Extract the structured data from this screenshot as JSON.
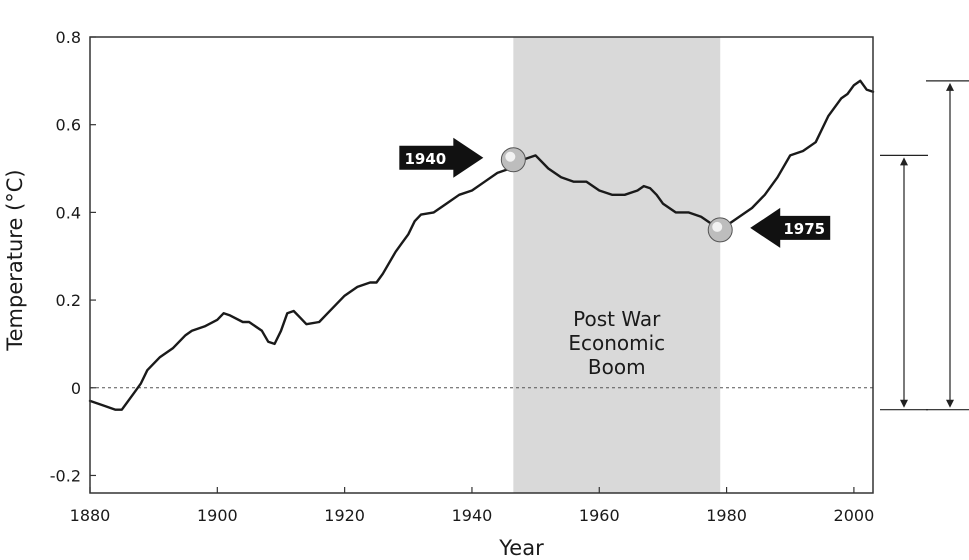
{
  "chart_data": {
    "type": "line",
    "title": "",
    "xlabel": "Year",
    "ylabel": "Temperature (°C)",
    "xlim": [
      1880,
      2003
    ],
    "ylim": [
      -0.24,
      0.8
    ],
    "x_ticks": [
      1880,
      1900,
      1920,
      1940,
      1960,
      1980,
      2000
    ],
    "y_ticks": [
      {
        "value": 0.8,
        "label": "0.8"
      },
      {
        "value": 0.6,
        "label": "0.6"
      },
      {
        "value": 0.4,
        "label": "0.4"
      },
      {
        "value": 0.2,
        "label": "0.2"
      },
      {
        "value": 0,
        "label": "0"
      },
      {
        "value": -0.2,
        "label": "-0.2"
      }
    ],
    "reference_line": {
      "y": 0,
      "style": "dashed"
    },
    "shaded_region": {
      "x_start": 1946.5,
      "x_end": 1979,
      "label_lines": [
        "Post War",
        "Economic",
        "Boom"
      ]
    },
    "series": [
      {
        "name": "Temperature",
        "x": [
          1880,
          1882,
          1884,
          1885,
          1886,
          1887,
          1888,
          1889,
          1891,
          1893,
          1895,
          1896,
          1898,
          1900,
          1901,
          1902,
          1904,
          1905,
          1907,
          1908,
          1909,
          1910,
          1911,
          1912,
          1913,
          1914,
          1916,
          1917,
          1918,
          1920,
          1922,
          1924,
          1925,
          1926,
          1928,
          1929,
          1930,
          1931,
          1932,
          1934,
          1936,
          1938,
          1940,
          1942,
          1944,
          1946,
          1948,
          1950,
          1952,
          1954,
          1956,
          1958,
          1960,
          1962,
          1964,
          1966,
          1967,
          1968,
          1969,
          1970,
          1972,
          1974,
          1976,
          1978,
          1979,
          1980,
          1982,
          1984,
          1986,
          1988,
          1990,
          1992,
          1994,
          1996,
          1998,
          1999,
          2000,
          2001,
          2002,
          2003
        ],
        "y": [
          -0.03,
          -0.04,
          -0.05,
          -0.05,
          -0.03,
          -0.01,
          0.01,
          0.04,
          0.07,
          0.09,
          0.12,
          0.13,
          0.14,
          0.155,
          0.17,
          0.165,
          0.15,
          0.15,
          0.13,
          0.105,
          0.1,
          0.13,
          0.17,
          0.175,
          0.16,
          0.145,
          0.15,
          0.165,
          0.18,
          0.21,
          0.23,
          0.24,
          0.24,
          0.26,
          0.31,
          0.33,
          0.35,
          0.38,
          0.395,
          0.4,
          0.42,
          0.44,
          0.45,
          0.47,
          0.49,
          0.5,
          0.52,
          0.53,
          0.5,
          0.48,
          0.47,
          0.47,
          0.45,
          0.44,
          0.44,
          0.45,
          0.46,
          0.455,
          0.44,
          0.42,
          0.4,
          0.4,
          0.39,
          0.37,
          0.365,
          0.37,
          0.39,
          0.41,
          0.44,
          0.48,
          0.53,
          0.54,
          0.56,
          0.62,
          0.66,
          0.67,
          0.69,
          0.7,
          0.68,
          0.675
        ]
      }
    ],
    "markers": [
      {
        "x": 1946.5,
        "y": 0.52,
        "label": "1940",
        "arrow_side": "left"
      },
      {
        "x": 1979,
        "y": 0.36,
        "label": "1975",
        "arrow_side": "right"
      }
    ],
    "range_brackets": [
      {
        "y_top": 0.53,
        "y_bottom": -0.05
      },
      {
        "y_top": 0.7,
        "y_bottom": -0.05
      }
    ],
    "colors": {
      "line": "#1a1a1a",
      "shade": "#d9d9d9",
      "frame": "#333333",
      "arrow": "#111111"
    }
  }
}
